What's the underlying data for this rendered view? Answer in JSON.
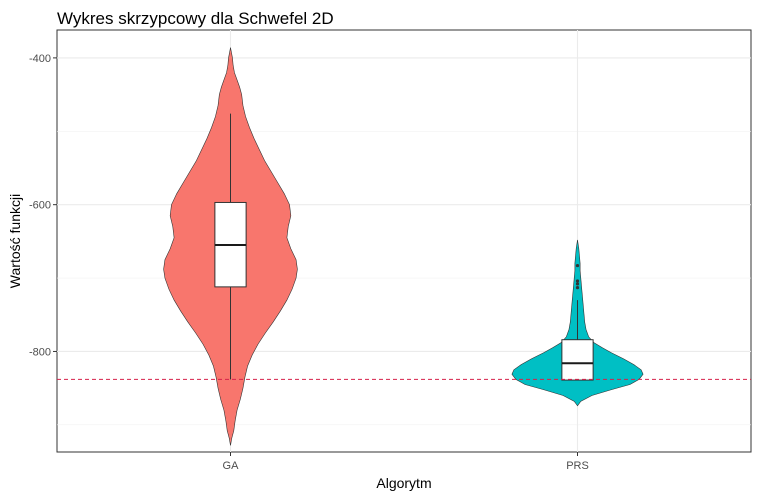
{
  "chart_data": {
    "type": "violin",
    "title": "Wykres skrzypcowy dla Schwefel 2D",
    "xlabel": "Algorytm",
    "ylabel": "Wartość funkcji",
    "categories": [
      "GA",
      "PRS"
    ],
    "ylim": [
      -937,
      -362
    ],
    "y_ticks": [
      -400,
      -600,
      -800
    ],
    "y_tick_labels": [
      "-400",
      "-600",
      "-800"
    ],
    "grid": true,
    "legend": "none",
    "reference_line": {
      "y": -838,
      "color": "#d6214a",
      "style": "dashed"
    },
    "series": [
      {
        "category": "GA",
        "fill": "#f8766d",
        "box": {
          "q1": -712,
          "median": -655,
          "q3": -597,
          "whisker_low": -838,
          "whisker_high": -476,
          "outliers": []
        },
        "density": [
          [
            -928,
            0.0
          ],
          [
            -918,
            0.02
          ],
          [
            -908,
            0.05
          ],
          [
            -895,
            0.07
          ],
          [
            -880,
            0.1
          ],
          [
            -865,
            0.15
          ],
          [
            -850,
            0.19
          ],
          [
            -835,
            0.22
          ],
          [
            -820,
            0.26
          ],
          [
            -805,
            0.33
          ],
          [
            -790,
            0.42
          ],
          [
            -775,
            0.53
          ],
          [
            -760,
            0.65
          ],
          [
            -745,
            0.76
          ],
          [
            -730,
            0.86
          ],
          [
            -715,
            0.94
          ],
          [
            -700,
            1.0
          ],
          [
            -688,
            1.02
          ],
          [
            -675,
            1.0
          ],
          [
            -660,
            0.92
          ],
          [
            -645,
            0.86
          ],
          [
            -630,
            0.88
          ],
          [
            -615,
            0.92
          ],
          [
            -600,
            0.9
          ],
          [
            -585,
            0.82
          ],
          [
            -570,
            0.72
          ],
          [
            -555,
            0.62
          ],
          [
            -540,
            0.52
          ],
          [
            -525,
            0.44
          ],
          [
            -510,
            0.36
          ],
          [
            -495,
            0.29
          ],
          [
            -480,
            0.23
          ],
          [
            -465,
            0.19
          ],
          [
            -450,
            0.17
          ],
          [
            -440,
            0.14
          ],
          [
            -430,
            0.1
          ],
          [
            -420,
            0.06
          ],
          [
            -410,
            0.04
          ],
          [
            -400,
            0.03
          ],
          [
            -386,
            0.0
          ]
        ]
      },
      {
        "category": "PRS",
        "fill": "#00bfc4",
        "box": {
          "q1": -839,
          "median": -816,
          "q3": -784,
          "whisker_low": -839,
          "whisker_high": -730,
          "outliers": [
            -704,
            -708,
            -713,
            -683
          ]
        },
        "density": [
          [
            -874,
            0.0
          ],
          [
            -868,
            0.05
          ],
          [
            -860,
            0.22
          ],
          [
            -852,
            0.52
          ],
          [
            -845,
            0.8
          ],
          [
            -838,
            0.94
          ],
          [
            -831,
            1.0
          ],
          [
            -825,
            0.97
          ],
          [
            -818,
            0.86
          ],
          [
            -810,
            0.7
          ],
          [
            -802,
            0.52
          ],
          [
            -795,
            0.38
          ],
          [
            -788,
            0.25
          ],
          [
            -780,
            0.17
          ],
          [
            -770,
            0.13
          ],
          [
            -760,
            0.11
          ],
          [
            -750,
            0.1
          ],
          [
            -740,
            0.09
          ],
          [
            -730,
            0.08
          ],
          [
            -720,
            0.07
          ],
          [
            -710,
            0.06
          ],
          [
            -700,
            0.05
          ],
          [
            -690,
            0.04
          ],
          [
            -680,
            0.04
          ],
          [
            -670,
            0.03
          ],
          [
            -660,
            0.02
          ],
          [
            -648,
            0.0
          ]
        ]
      }
    ]
  }
}
